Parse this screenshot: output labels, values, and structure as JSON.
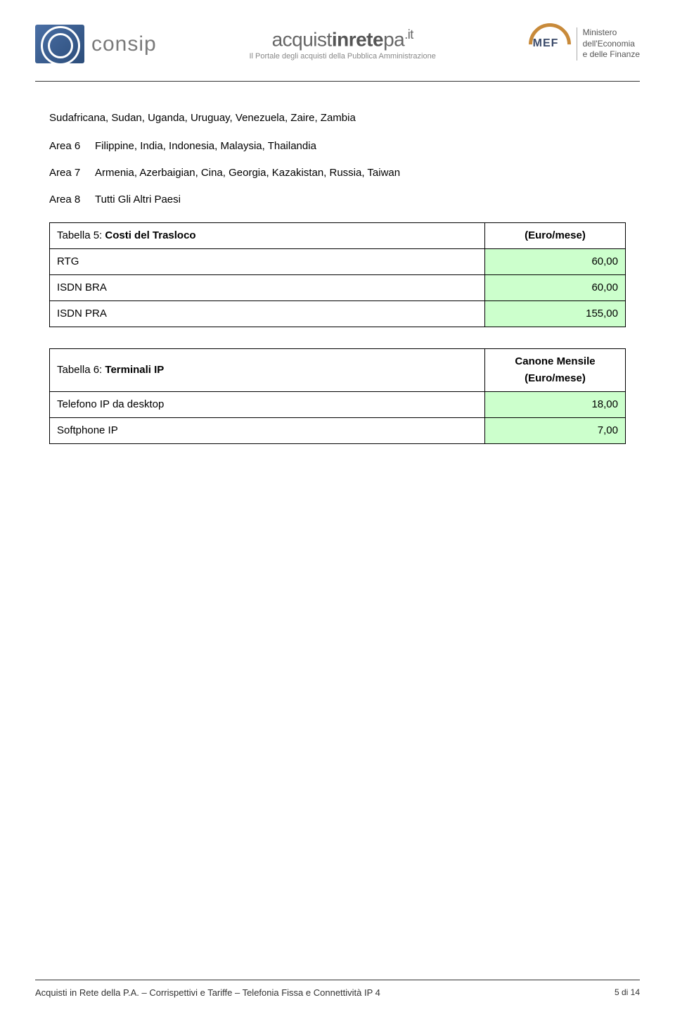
{
  "header": {
    "consip_text": "consip",
    "acq_part1": "acquist",
    "acq_part2": "inrete",
    "acq_part3": "pa",
    "acq_it": ".it",
    "acq_sub": "Il Portale degli acquisti della Pubblica Amministrazione",
    "mef_text": "MEF",
    "mef_line1": "Ministero",
    "mef_line2": "dell'Economia",
    "mef_line3": "e delle Finanze"
  },
  "body": {
    "prev_para": "Sudafricana, Sudan, Uganda, Uruguay, Venezuela, Zaire, Zambia",
    "areas": [
      {
        "label": "Area 6",
        "text": "Filippine, India, Indonesia, Malaysia, Thailandia"
      },
      {
        "label": "Area 7",
        "text": "Armenia, Azerbaigian, Cina, Georgia, Kazakistan, Russia, Taiwan"
      },
      {
        "label": "Area 8",
        "text": "Tutti Gli Altri Paesi"
      }
    ]
  },
  "table5": {
    "title_prefix": "Tabella 5: ",
    "title_bold": "Costi del Trasloco",
    "header_unit": "(Euro/mese)",
    "rows": [
      {
        "label": "RTG",
        "value": "60,00"
      },
      {
        "label": "ISDN BRA",
        "value": "60,00"
      },
      {
        "label": "ISDN PRA",
        "value": "155,00"
      }
    ]
  },
  "table6": {
    "title_prefix": "Tabella 6: ",
    "title_bold": "Terminali IP",
    "header_line1": "Canone Mensile",
    "header_line2": "(Euro/mese)",
    "rows": [
      {
        "label": "Telefono IP da desktop",
        "value": "18,00"
      },
      {
        "label": "Softphone IP",
        "value": "7,00"
      }
    ]
  },
  "footer": {
    "text": "Acquisti in Rete della P.A. – Corrispettivi e Tariffe – Telefonia Fissa e Connettività IP 4",
    "page": "5 di 14"
  },
  "colors": {
    "green_bg": "#ccffcc"
  }
}
